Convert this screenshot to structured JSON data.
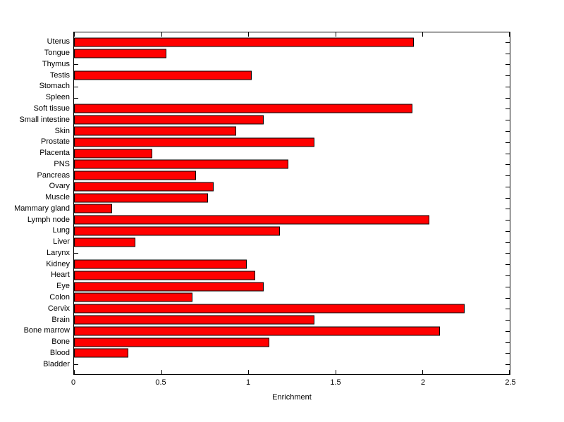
{
  "chart_data": {
    "type": "bar",
    "orientation": "horizontal",
    "category_order": "top-to-bottom",
    "categories": [
      "Uterus",
      "Tongue",
      "Thymus",
      "Testis",
      "Stomach",
      "Spleen",
      "Soft tissue",
      "Small intestine",
      "Skin",
      "Prostate",
      "Placenta",
      "PNS",
      "Pancreas",
      "Ovary",
      "Muscle",
      "Mammary gland",
      "Lymph node",
      "Lung",
      "Liver",
      "Larynx",
      "Kidney",
      "Heart",
      "Eye",
      "Colon",
      "Cervix",
      "Brain",
      "Bone marrow",
      "Bone",
      "Blood",
      "Bladder"
    ],
    "values": [
      1.95,
      0.53,
      0,
      1.02,
      0,
      0,
      1.94,
      1.09,
      0.93,
      1.38,
      0.45,
      1.23,
      0.7,
      0.8,
      0.77,
      0.22,
      2.04,
      1.18,
      0.35,
      0,
      0.99,
      1.04,
      1.09,
      0.68,
      2.24,
      1.38,
      2.1,
      1.12,
      0.31,
      0
    ],
    "title": "",
    "xlabel": "Enrichment",
    "ylabel": "",
    "xlim": [
      0,
      2.5
    ],
    "x_ticks": [
      0,
      0.5,
      1,
      1.5,
      2,
      2.5
    ],
    "x_tick_labels": [
      "0",
      "0.5",
      "1",
      "1.5",
      "2",
      "2.5"
    ],
    "grid": false,
    "legend": null,
    "bar_color": "#FF0000",
    "bar_edge_color": "#000000",
    "axis_color": "#000000",
    "background_color": "#FFFFFF"
  }
}
